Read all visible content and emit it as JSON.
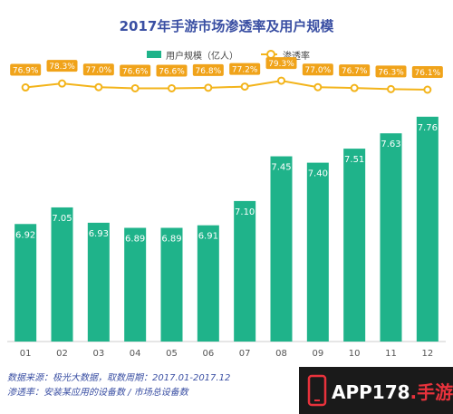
{
  "title": "2017年手游市场渗透率及用户规模",
  "legend": {
    "bar_label": "用户规模（亿人）",
    "line_label": "渗透率"
  },
  "colors": {
    "bar": "#1fb38a",
    "line": "#f3b41b",
    "title": "#3a4fa3",
    "label_bg": "#f0a31a"
  },
  "chart_data": {
    "type": "bar",
    "title": "2017年手游市场渗透率及用户规模",
    "categories": [
      "01",
      "02",
      "03",
      "04",
      "05",
      "06",
      "07",
      "08",
      "09",
      "10",
      "11",
      "12"
    ],
    "series": [
      {
        "name": "用户规模（亿人）",
        "type": "bar",
        "values": [
          6.92,
          7.05,
          6.93,
          6.89,
          6.89,
          6.91,
          7.1,
          7.45,
          7.4,
          7.51,
          7.63,
          7.76
        ]
      },
      {
        "name": "渗透率",
        "type": "line",
        "values": [
          76.9,
          78.3,
          77.0,
          76.6,
          76.6,
          76.8,
          77.2,
          79.3,
          77.0,
          76.7,
          76.3,
          76.1
        ],
        "unit": "%"
      }
    ],
    "grid": false,
    "legend_position": "top-center"
  },
  "footnotes": {
    "source": "数据来源：极光大数据，取数周期：2017.01-2017.12",
    "definition": "渗透率：安装某应用的设备数 / 市场总设备数"
  },
  "watermark": {
    "text_white": "APP178",
    "text_red": ".手游网"
  }
}
